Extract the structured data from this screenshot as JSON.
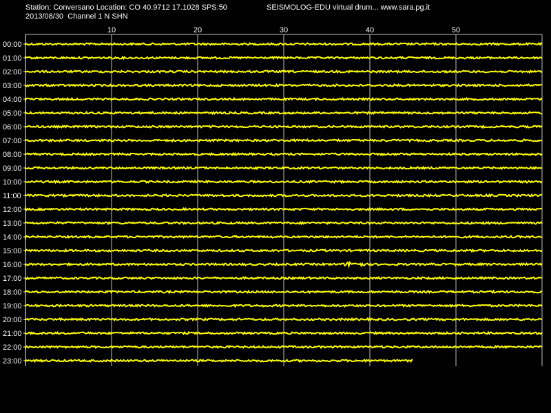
{
  "header": {
    "station_line": "Station: Conversano Location: CO 40.9712 17.1028 SPS:50",
    "app_line": "SEISMOLOG-EDU virtual drum... www.sara.pg.it",
    "date_line": "2013/08/30  Channel 1 N SHN"
  },
  "chart_data": {
    "type": "line",
    "title": "",
    "xlabel": "",
    "ylabel": "",
    "x_ticks": [
      10,
      20,
      30,
      40,
      50
    ],
    "xlim": [
      0,
      60
    ],
    "grid": true,
    "trace_color": "#ffff00",
    "background": "#000000",
    "grid_color": "#c0c0c0",
    "rows": [
      {
        "label": "00:00",
        "end_minute": 60
      },
      {
        "label": "01:00",
        "end_minute": 60
      },
      {
        "label": "02:00",
        "end_minute": 60
      },
      {
        "label": "03:00",
        "end_minute": 60
      },
      {
        "label": "04:00",
        "end_minute": 60
      },
      {
        "label": "05:00",
        "end_minute": 60
      },
      {
        "label": "06:00",
        "end_minute": 60
      },
      {
        "label": "07:00",
        "end_minute": 60
      },
      {
        "label": "08:00",
        "end_minute": 60
      },
      {
        "label": "09:00",
        "end_minute": 60
      },
      {
        "label": "10:00",
        "end_minute": 60
      },
      {
        "label": "11:00",
        "end_minute": 60
      },
      {
        "label": "12:00",
        "end_minute": 60
      },
      {
        "label": "13:00",
        "end_minute": 60
      },
      {
        "label": "14:00",
        "end_minute": 60
      },
      {
        "label": "15:00",
        "end_minute": 60
      },
      {
        "label": "16:00",
        "end_minute": 60,
        "event_minute": 38.2
      },
      {
        "label": "17:00",
        "end_minute": 60
      },
      {
        "label": "18:00",
        "end_minute": 60
      },
      {
        "label": "19:00",
        "end_minute": 60
      },
      {
        "label": "20:00",
        "end_minute": 60
      },
      {
        "label": "21:00",
        "end_minute": 60
      },
      {
        "label": "22:00",
        "end_minute": 60
      },
      {
        "label": "23:00",
        "end_minute": 45
      }
    ]
  }
}
